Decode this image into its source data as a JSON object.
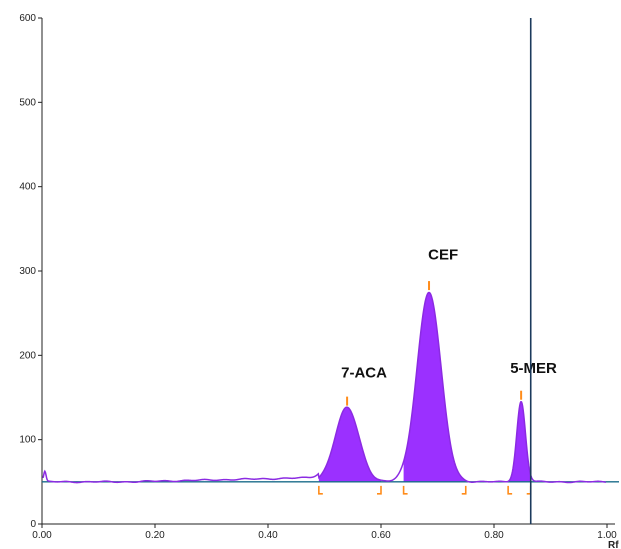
{
  "chart_data": {
    "type": "area",
    "title": "",
    "xlabel": "Rf",
    "ylabel": "",
    "xlim": [
      0.0,
      1.0
    ],
    "ylim": [
      0,
      600
    ],
    "x_ticks": [
      "0.00",
      "0.20",
      "0.40",
      "0.60",
      "0.80",
      "1.00"
    ],
    "y_ticks": [
      "0",
      "100",
      "200",
      "300",
      "400",
      "500",
      "600"
    ],
    "baseline": 50,
    "vertical_marker_x": 0.865,
    "grid": false,
    "colors": {
      "fill": "#9b30ff",
      "trace": "#8b2be2",
      "baseline": "#1a6b8a",
      "marker": "#1b3a5c",
      "bracket": "#ff8c1a"
    },
    "peaks": [
      {
        "name": "7-ACA",
        "center": 0.54,
        "height": 138,
        "start": 0.49,
        "end": 0.6,
        "label_x": 0.57,
        "label_y": 175
      },
      {
        "name": "CEF",
        "center": 0.685,
        "height": 275,
        "start": 0.64,
        "end": 0.75,
        "label_x": 0.71,
        "label_y": 315
      },
      {
        "name": "5-MER",
        "center": 0.848,
        "height": 145,
        "start": 0.825,
        "end": 0.865,
        "label_x": 0.87,
        "label_y": 180
      }
    ]
  }
}
